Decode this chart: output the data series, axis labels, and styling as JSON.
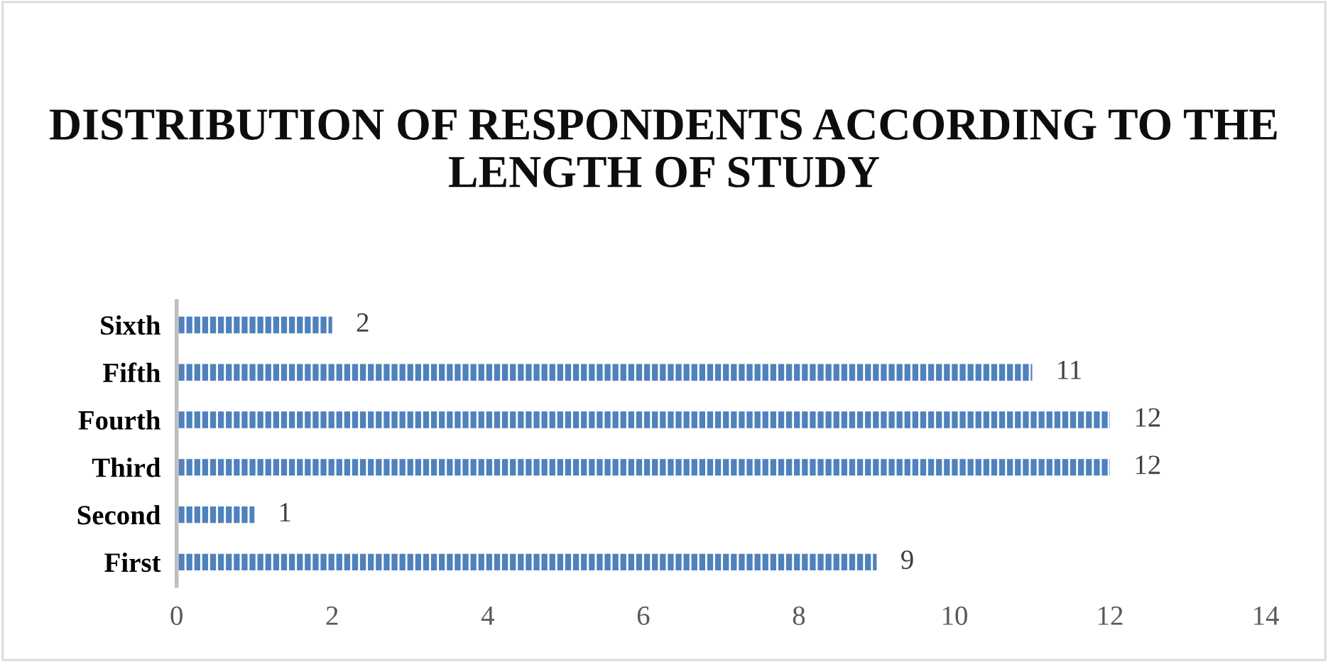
{
  "chart_data": {
    "type": "bar",
    "orientation": "horizontal",
    "title": "DISTRIBUTION OF RESPONDENTS ACCORDING TO THE LENGTH OF STUDY",
    "categories": [
      "Sixth",
      "Fifth",
      "Fourth",
      "Third",
      "Second",
      "First"
    ],
    "values": [
      2,
      11,
      12,
      12,
      1,
      9
    ],
    "color": "#4f81bd",
    "xlim": [
      0,
      14
    ],
    "xticks": [
      0,
      2,
      4,
      6,
      8,
      10,
      12,
      14
    ],
    "grid": false,
    "data_labels": true
  }
}
